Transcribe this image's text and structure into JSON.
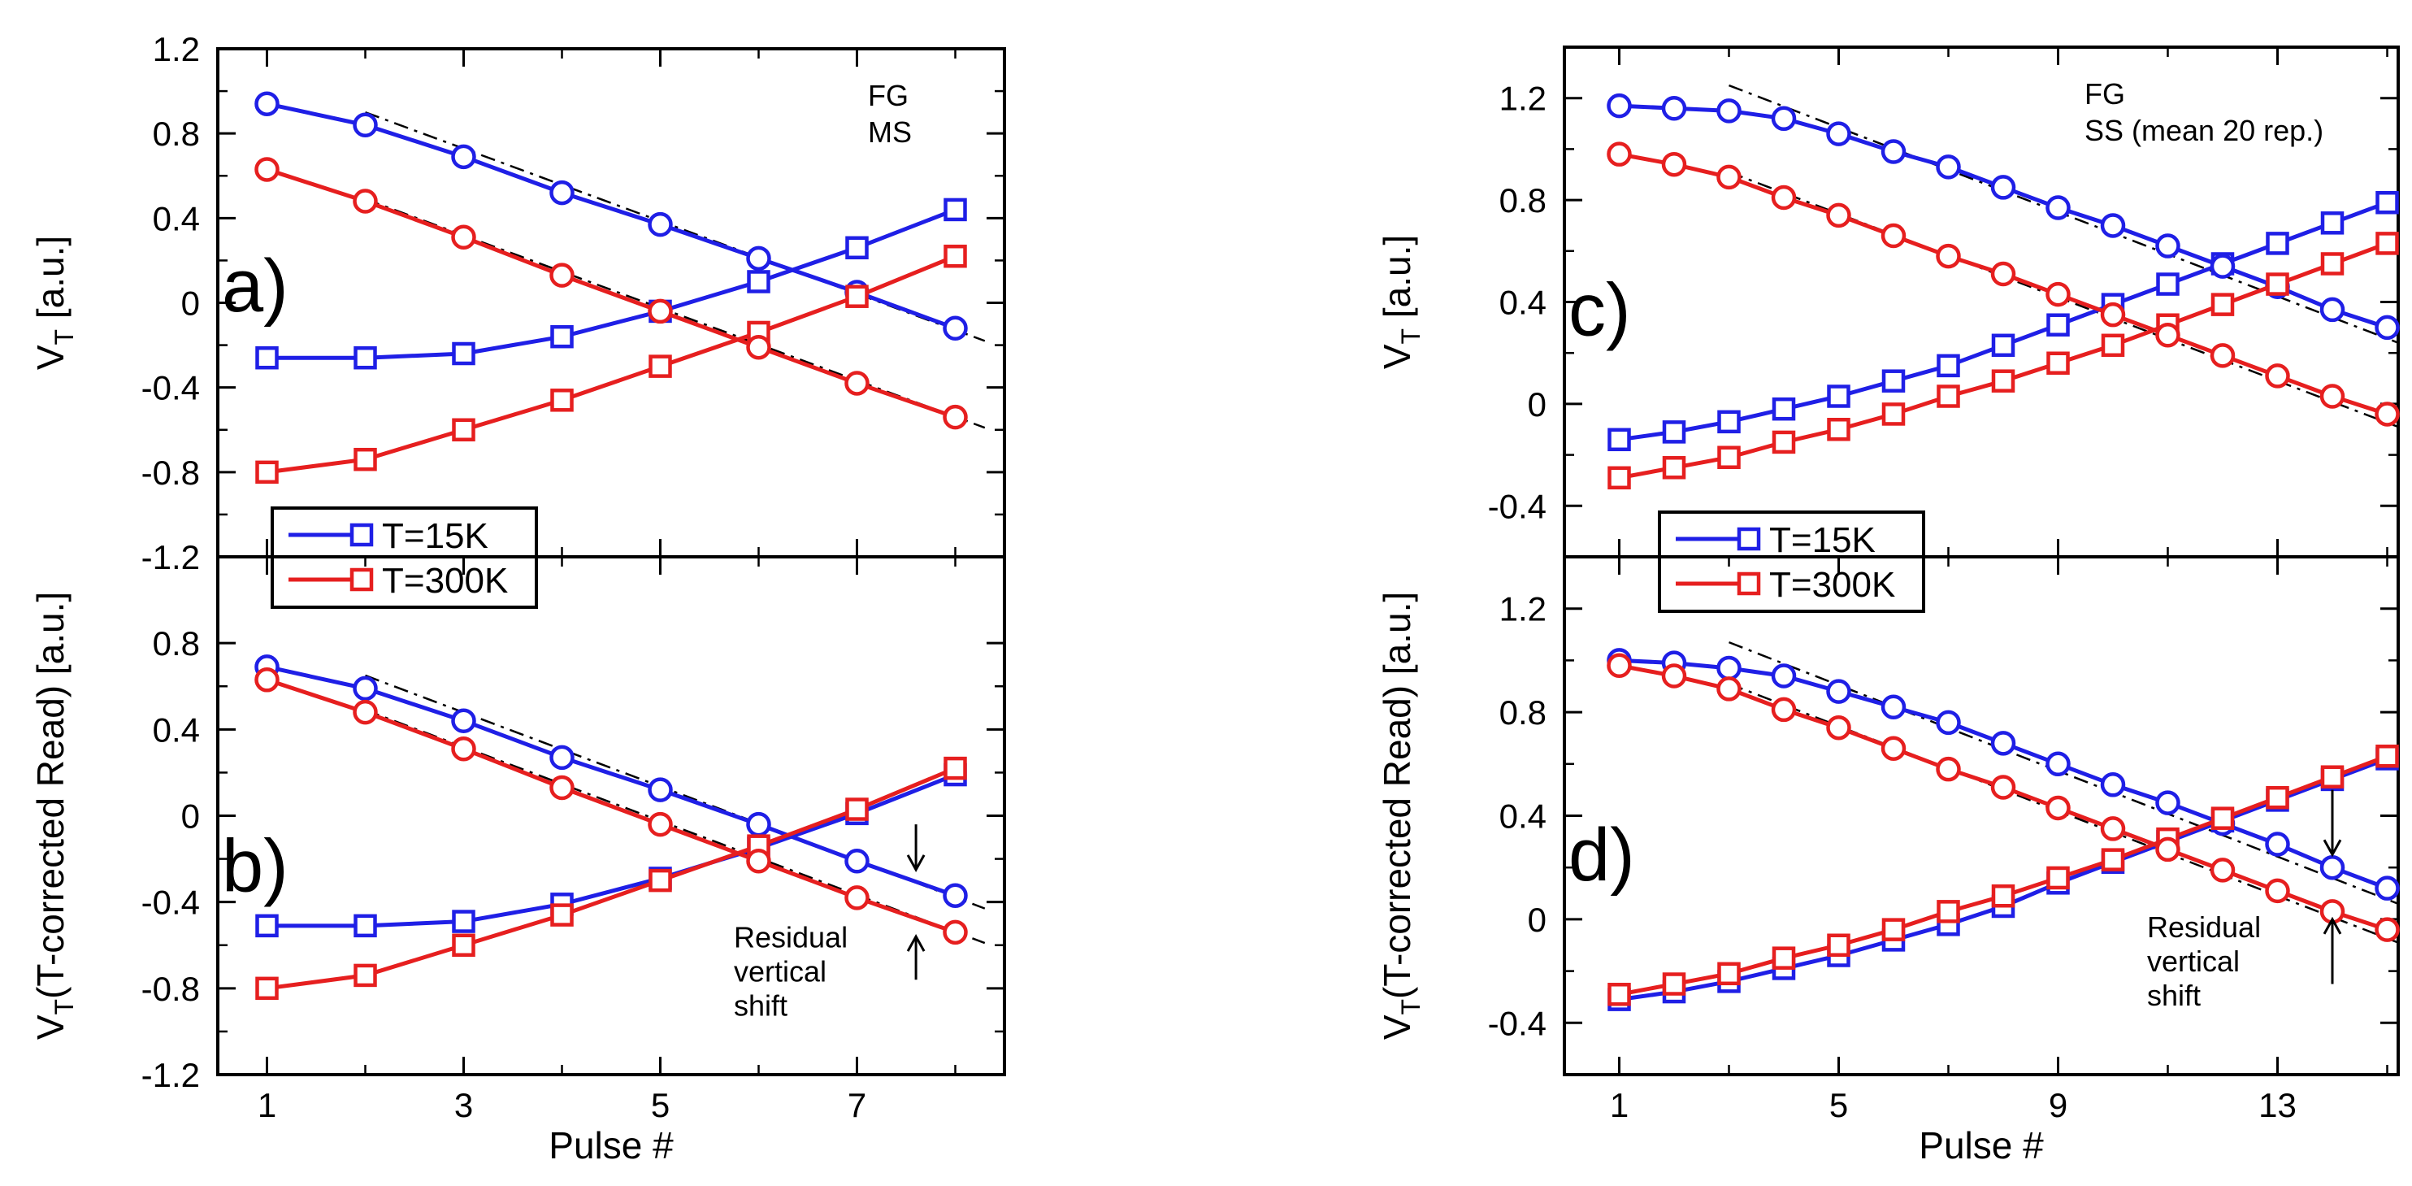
{
  "colors": {
    "blue": "#1f1fe6",
    "red": "#e61f1f",
    "frame": "#000000",
    "fit": "#000000"
  },
  "legend": {
    "items": [
      "T=15K",
      "T=300K"
    ]
  },
  "chart_data": [
    {
      "id": "a",
      "type": "line",
      "panel_label": "a)",
      "annotation": [
        "FG",
        "MS"
      ],
      "ylabel_main": "V",
      "ylabel_sub": "T",
      "ylabel_rest": " [a.u.]",
      "xlabel": "",
      "xlim": [
        0.5,
        8.5
      ],
      "ylim": [
        -1.2,
        1.2
      ],
      "xticks": [
        1,
        3,
        5,
        7
      ],
      "xtick_labels": [
        "1",
        "3",
        "5",
        "7"
      ],
      "show_xtick_labels": false,
      "yticks": [
        -1.2,
        -0.8,
        -0.4,
        0,
        0.4,
        0.8,
        1.2
      ],
      "ytick_labels": [
        "-1.2",
        "-0.8",
        "-0.4",
        "0",
        "0.4",
        "0.8",
        "1.2"
      ],
      "x": [
        1,
        2,
        3,
        4,
        5,
        6,
        7,
        8
      ],
      "series": [
        {
          "name": "T=15K read (squares)",
          "color": "blue",
          "marker": "square",
          "values": [
            -0.26,
            -0.26,
            -0.24,
            -0.16,
            -0.04,
            0.1,
            0.26,
            0.44
          ]
        },
        {
          "name": "T=15K program (circles)",
          "color": "blue",
          "marker": "circle",
          "values": [
            0.94,
            0.84,
            0.69,
            0.52,
            0.37,
            0.21,
            0.05,
            -0.12
          ]
        },
        {
          "name": "T=300K read (squares)",
          "color": "red",
          "marker": "square",
          "values": [
            -0.8,
            -0.74,
            -0.6,
            -0.46,
            -0.3,
            -0.14,
            0.03,
            0.22
          ]
        },
        {
          "name": "T=300K program (circles)",
          "color": "red",
          "marker": "circle",
          "values": [
            0.63,
            0.48,
            0.31,
            0.13,
            -0.04,
            -0.21,
            -0.38,
            -0.54
          ]
        }
      ],
      "fits": [
        {
          "style": "dashdot",
          "x": [
            2,
            8.3
          ],
          "y": [
            0.9,
            -0.18
          ]
        },
        {
          "style": "dashdot",
          "x": [
            2,
            8.3
          ],
          "y": [
            0.49,
            -0.59
          ]
        }
      ]
    },
    {
      "id": "b",
      "type": "line",
      "panel_label": "b)",
      "annotation": [],
      "ylabel_main": "V",
      "ylabel_sub": "T",
      "ylabel_rest": "(T-corrected Read) [a.u.]",
      "xlabel": "Pulse #",
      "xlim": [
        0.5,
        8.5
      ],
      "ylim": [
        -1.2,
        1.2
      ],
      "xticks": [
        1,
        3,
        5,
        7
      ],
      "xtick_labels": [
        "1",
        "3",
        "5",
        "7"
      ],
      "show_xtick_labels": true,
      "yticks": [
        -1.2,
        -0.8,
        -0.4,
        0,
        0.4,
        0.8
      ],
      "ytick_labels": [
        "-1.2",
        "-0.8",
        "-0.4",
        "0",
        "0.4",
        "0.8"
      ],
      "x": [
        1,
        2,
        3,
        4,
        5,
        6,
        7,
        8
      ],
      "series": [
        {
          "name": "T=15K read (squares)",
          "color": "blue",
          "marker": "square",
          "values": [
            -0.51,
            -0.51,
            -0.49,
            -0.41,
            -0.29,
            -0.15,
            0.01,
            0.19
          ]
        },
        {
          "name": "T=15K program (circles)",
          "color": "blue",
          "marker": "circle",
          "values": [
            0.69,
            0.59,
            0.44,
            0.27,
            0.12,
            -0.04,
            -0.21,
            -0.37
          ]
        },
        {
          "name": "T=300K read (squares)",
          "color": "red",
          "marker": "square",
          "values": [
            -0.8,
            -0.74,
            -0.6,
            -0.46,
            -0.3,
            -0.14,
            0.03,
            0.22
          ]
        },
        {
          "name": "T=300K program (circles)",
          "color": "red",
          "marker": "circle",
          "values": [
            0.63,
            0.48,
            0.31,
            0.13,
            -0.04,
            -0.21,
            -0.38,
            -0.54
          ]
        }
      ],
      "fits": [
        {
          "style": "dashdot",
          "x": [
            2,
            8.3
          ],
          "y": [
            0.65,
            -0.43
          ]
        },
        {
          "style": "dashdot",
          "x": [
            2,
            8.3
          ],
          "y": [
            0.49,
            -0.59
          ]
        }
      ],
      "note": [
        "Residual",
        "vertical",
        "shift"
      ],
      "arrows": [
        {
          "x": 7.6,
          "from": -0.04,
          "to": -0.25
        },
        {
          "x": 7.6,
          "from": -0.76,
          "to": -0.56
        }
      ]
    },
    {
      "id": "c",
      "type": "line",
      "panel_label": "c)",
      "annotation": [
        "FG",
        "SS (mean 20 rep.)"
      ],
      "ylabel_main": "V",
      "ylabel_sub": "T",
      "ylabel_rest": " [a.u.]",
      "xlabel": "",
      "xlim": [
        0,
        15.2
      ],
      "ylim": [
        -0.6,
        1.4
      ],
      "xticks": [
        1,
        5,
        9,
        13
      ],
      "xtick_labels": [
        "1",
        "5",
        "9",
        "13"
      ],
      "show_xtick_labels": false,
      "yticks": [
        -0.4,
        0,
        0.4,
        0.8,
        1.2
      ],
      "ytick_labels": [
        "-0.4",
        "0",
        "0.4",
        "0.8",
        "1.2"
      ],
      "x": [
        1,
        2,
        3,
        4,
        5,
        6,
        7,
        8,
        9,
        10,
        11,
        12,
        13,
        14,
        15
      ],
      "series": [
        {
          "name": "T=15K read (squares)",
          "color": "blue",
          "marker": "square",
          "values": [
            -0.14,
            -0.11,
            -0.07,
            -0.02,
            0.03,
            0.09,
            0.15,
            0.23,
            0.31,
            0.39,
            0.47,
            0.55,
            0.63,
            0.71,
            0.79
          ]
        },
        {
          "name": "T=15K program (circles)",
          "color": "blue",
          "marker": "circle",
          "values": [
            1.17,
            1.16,
            1.15,
            1.12,
            1.06,
            0.99,
            0.93,
            0.85,
            0.77,
            0.7,
            0.62,
            0.54,
            0.46,
            0.37,
            0.3
          ]
        },
        {
          "name": "T=300K read (squares)",
          "color": "red",
          "marker": "square",
          "values": [
            -0.29,
            -0.25,
            -0.21,
            -0.15,
            -0.1,
            -0.04,
            0.03,
            0.09,
            0.16,
            0.23,
            0.31,
            0.39,
            0.47,
            0.55,
            0.63
          ]
        },
        {
          "name": "T=300K program (circles)",
          "color": "red",
          "marker": "circle",
          "values": [
            0.98,
            0.94,
            0.89,
            0.81,
            0.74,
            0.66,
            0.58,
            0.51,
            0.43,
            0.35,
            0.27,
            0.19,
            0.11,
            0.03,
            -0.04
          ]
        }
      ],
      "fits": [
        {
          "style": "dashdot",
          "x": [
            3,
            15.2
          ],
          "y": [
            1.25,
            0.24
          ]
        },
        {
          "style": "dashdot",
          "x": [
            3,
            15.2
          ],
          "y": [
            0.91,
            -0.09
          ]
        }
      ]
    },
    {
      "id": "d",
      "type": "line",
      "panel_label": "d)",
      "annotation": [],
      "ylabel_main": "V",
      "ylabel_sub": "T",
      "ylabel_rest": "(T-corrected Read) [a.u.]",
      "xlabel": "Pulse #",
      "xlim": [
        0,
        15.2
      ],
      "ylim": [
        -0.6,
        1.4
      ],
      "xticks": [
        1,
        5,
        9,
        13
      ],
      "xtick_labels": [
        "1",
        "5",
        "9",
        "13"
      ],
      "show_xtick_labels": true,
      "yticks": [
        -0.4,
        0,
        0.4,
        0.8,
        1.2
      ],
      "ytick_labels": [
        "-0.4",
        "0",
        "0.4",
        "0.8",
        "1.2"
      ],
      "x": [
        1,
        2,
        3,
        4,
        5,
        6,
        7,
        8,
        9,
        10,
        11,
        12,
        13,
        14,
        15
      ],
      "series": [
        {
          "name": "T=15K read (squares)",
          "color": "blue",
          "marker": "square",
          "values": [
            -0.31,
            -0.28,
            -0.24,
            -0.19,
            -0.14,
            -0.08,
            -0.02,
            0.05,
            0.14,
            0.22,
            0.3,
            0.38,
            0.46,
            0.54,
            0.62
          ]
        },
        {
          "name": "T=15K program (circles)",
          "color": "blue",
          "marker": "circle",
          "values": [
            1.0,
            0.99,
            0.97,
            0.94,
            0.88,
            0.82,
            0.76,
            0.68,
            0.6,
            0.52,
            0.45,
            0.37,
            0.29,
            0.2,
            0.12
          ]
        },
        {
          "name": "T=300K read (squares)",
          "color": "red",
          "marker": "square",
          "values": [
            -0.29,
            -0.25,
            -0.21,
            -0.15,
            -0.1,
            -0.04,
            0.03,
            0.09,
            0.16,
            0.23,
            0.31,
            0.39,
            0.47,
            0.55,
            0.63
          ]
        },
        {
          "name": "T=300K program (circles)",
          "color": "red",
          "marker": "circle",
          "values": [
            0.98,
            0.94,
            0.89,
            0.81,
            0.74,
            0.66,
            0.58,
            0.51,
            0.43,
            0.35,
            0.27,
            0.19,
            0.11,
            0.03,
            -0.04
          ]
        }
      ],
      "fits": [
        {
          "style": "dashdot",
          "x": [
            3,
            15.2
          ],
          "y": [
            1.07,
            0.06
          ]
        },
        {
          "style": "dashdot",
          "x": [
            3,
            15.2
          ],
          "y": [
            0.91,
            -0.09
          ]
        }
      ],
      "note": [
        "Residual",
        "vertical",
        "shift"
      ],
      "arrows": [
        {
          "x": 14.0,
          "from": 0.5,
          "to": 0.25
        },
        {
          "x": 14.0,
          "from": -0.25,
          "to": 0.0
        }
      ]
    }
  ]
}
